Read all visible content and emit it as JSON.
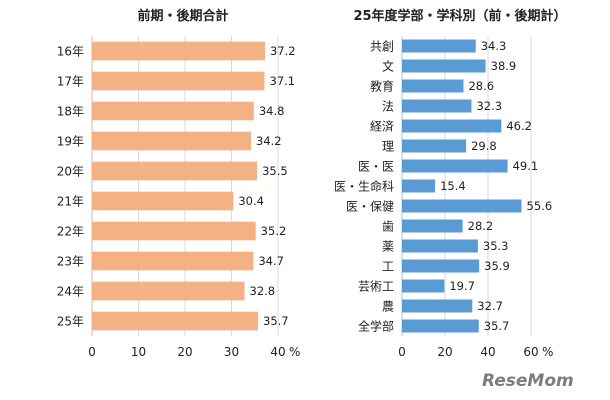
{
  "chart_data": [
    {
      "type": "bar",
      "orientation": "horizontal",
      "title": "前期・後期合計",
      "categories": [
        "16年",
        "17年",
        "18年",
        "19年",
        "20年",
        "21年",
        "22年",
        "23年",
        "24年",
        "25年"
      ],
      "values": [
        37.2,
        37.1,
        34.8,
        34.2,
        35.5,
        30.4,
        35.2,
        34.7,
        32.8,
        35.7
      ],
      "value_labels": [
        "37.2",
        "37.1",
        "34.8",
        "34.2",
        "35.5",
        "30.4",
        "35.2",
        "34.7",
        "32.8",
        "35.7"
      ],
      "xlim": [
        0,
        40
      ],
      "xticks": [
        "0",
        "10",
        "20",
        "30",
        "40"
      ],
      "unit_label": "%",
      "grid": true,
      "color": "#f4b183"
    },
    {
      "type": "bar",
      "orientation": "horizontal",
      "title": "25年度学部・学科別（前・後期計）",
      "categories": [
        "共創",
        "文",
        "教育",
        "法",
        "経済",
        "理",
        "医・医",
        "医・生命科",
        "医・保健",
        "歯",
        "薬",
        "工",
        "芸術工",
        "農",
        "全学部"
      ],
      "values": [
        34.3,
        38.9,
        28.6,
        32.3,
        46.2,
        29.8,
        49.1,
        15.4,
        55.6,
        28.2,
        35.3,
        35.9,
        19.7,
        32.7,
        35.7
      ],
      "value_labels": [
        "34.3",
        "38.9",
        "28.6",
        "32.3",
        "46.2",
        "29.8",
        "49.1",
        "15.4",
        "55.6",
        "28.2",
        "35.3",
        "35.9",
        "19.7",
        "32.7",
        "35.7"
      ],
      "xlim": [
        0,
        60
      ],
      "xticks": [
        "0",
        "20",
        "40",
        "60"
      ],
      "unit_label": "%",
      "grid": true,
      "color": "#5b9bd5"
    }
  ],
  "watermark": {
    "text": "ReseMom"
  }
}
